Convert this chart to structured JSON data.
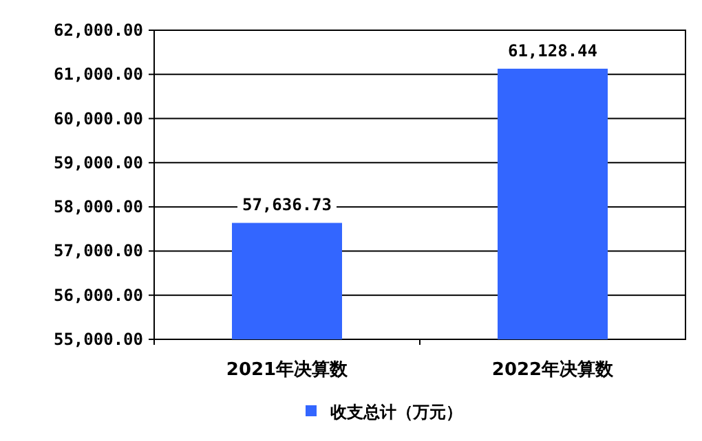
{
  "chart_data": {
    "type": "bar",
    "categories": [
      "2021年决算数",
      "2022年决算数"
    ],
    "series": [
      {
        "name": "收支总计（万元）",
        "color": "#3366ff",
        "values": [
          57636.73,
          61128.44
        ],
        "value_labels": [
          "57,636.73",
          "61,128.44"
        ]
      }
    ],
    "ylim": [
      55000,
      62000
    ],
    "yticks": [
      {
        "value": 55000,
        "label": "55,000.00"
      },
      {
        "value": 56000,
        "label": "56,000.00"
      },
      {
        "value": 57000,
        "label": "57,000.00"
      },
      {
        "value": 58000,
        "label": "58,000.00"
      },
      {
        "value": 59000,
        "label": "59,000.00"
      },
      {
        "value": 60000,
        "label": "60,000.00"
      },
      {
        "value": 61000,
        "label": "61,000.00"
      },
      {
        "value": 62000,
        "label": "62,000.00"
      }
    ],
    "grid": "y",
    "legend": "bottom"
  }
}
